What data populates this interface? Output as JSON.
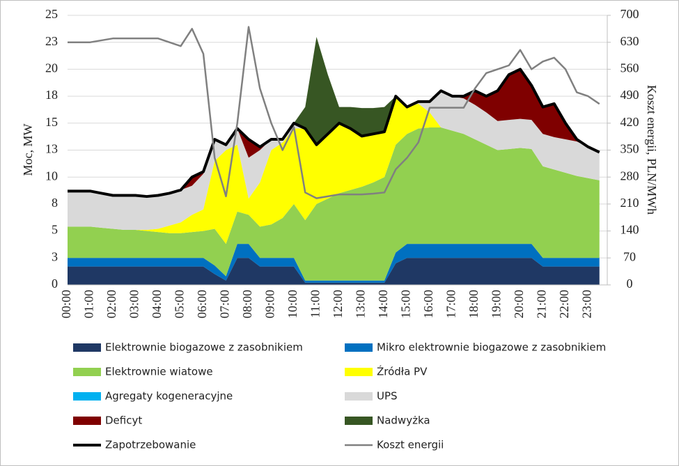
{
  "chart_data": {
    "type": "stacked-area",
    "y_label": "Moc, MW",
    "y2_label": "Koszt energii, PLN/MWh",
    "categories": [
      "00:00",
      null,
      "01:00",
      null,
      "02:00",
      null,
      "03:00",
      null,
      "04:00",
      null,
      "05:00",
      null,
      "06:00",
      null,
      "07:00",
      null,
      "08:00",
      null,
      "09:00",
      null,
      "10:00",
      null,
      "11:00",
      null,
      "12:00",
      null,
      "13:00",
      null,
      "14:00",
      null,
      "15:00",
      null,
      "16:00",
      null,
      "17:00",
      null,
      "18:00",
      null,
      "19:00",
      null,
      "20:00",
      null,
      "21:00",
      null,
      "22:00",
      null,
      "23:00",
      null
    ],
    "ylim": [
      0,
      25
    ],
    "yticks": [
      0,
      {
        "value": 2.5,
        "label": "3"
      },
      5,
      {
        "value": 7.5,
        "label": "8"
      },
      10,
      {
        "value": 12.5,
        "label": "13"
      },
      15,
      {
        "value": 17.5,
        "label": "18"
      },
      20,
      {
        "value": 22.5,
        "label": "23"
      },
      25
    ],
    "y2lim": [
      0,
      700
    ],
    "y2ticks": [
      0,
      70,
      140,
      210,
      280,
      350,
      420,
      490,
      560,
      630,
      700
    ],
    "grid": true,
    "series": [
      {
        "name": "Elektrownie biogazowe z zasobnikiem",
        "type": "area",
        "color": "#1f3864",
        "values": [
          1.7,
          1.7,
          1.7,
          1.7,
          1.7,
          1.7,
          1.7,
          1.7,
          1.7,
          1.7,
          1.7,
          1.7,
          1.7,
          1.0,
          0.4,
          2.5,
          2.5,
          1.7,
          1.7,
          1.7,
          1.7,
          0.2,
          0.2,
          0.2,
          0.2,
          0.2,
          0.2,
          0.2,
          0.2,
          2.0,
          2.5,
          2.5,
          2.5,
          2.5,
          2.5,
          2.5,
          2.5,
          2.5,
          2.5,
          2.5,
          2.5,
          2.5,
          1.7,
          1.7,
          1.7,
          1.7,
          1.7,
          1.7
        ]
      },
      {
        "name": "Mikro elektrownie biogazowe z zasobnikiem",
        "type": "area",
        "color": "#0070c0",
        "values": [
          0.8,
          0.8,
          0.8,
          0.8,
          0.8,
          0.8,
          0.8,
          0.8,
          0.8,
          0.8,
          0.8,
          0.8,
          0.8,
          0.8,
          0.4,
          1.3,
          1.3,
          0.8,
          0.8,
          0.8,
          0.8,
          0.2,
          0.2,
          0.2,
          0.2,
          0.2,
          0.2,
          0.2,
          0.2,
          1.0,
          1.3,
          1.3,
          1.3,
          1.3,
          1.3,
          1.3,
          1.3,
          1.3,
          1.3,
          1.3,
          1.3,
          1.3,
          0.8,
          0.8,
          0.8,
          0.8,
          0.8,
          0.8
        ]
      },
      {
        "name": "Elektrownie wiatowe",
        "type": "area",
        "color": "#92d050",
        "values": [
          2.9,
          2.9,
          2.9,
          2.8,
          2.7,
          2.6,
          2.6,
          2.5,
          2.4,
          2.3,
          2.3,
          2.4,
          2.5,
          3.4,
          3.0,
          3.0,
          2.7,
          2.9,
          3.1,
          3.7,
          5.0,
          5.6,
          7.1,
          7.6,
          8.1,
          8.4,
          8.7,
          9.1,
          9.6,
          10.0,
          10.2,
          10.7,
          10.8,
          10.8,
          10.5,
          10.2,
          9.7,
          9.2,
          8.7,
          8.8,
          8.9,
          8.8,
          8.5,
          8.2,
          7.9,
          7.6,
          7.4,
          7.2
        ]
      },
      {
        "name": "Źródła PV",
        "type": "area",
        "color": "#ffff00",
        "values": [
          0,
          0,
          0,
          0,
          0,
          0,
          0,
          0.1,
          0.3,
          0.7,
          1.0,
          1.6,
          2.0,
          6.3,
          8.7,
          6.2,
          1.5,
          4.1,
          6.9,
          7.0,
          7.0,
          8.5,
          5.5,
          6.0,
          6.5,
          5.7,
          4.7,
          4.5,
          4.2,
          4.5,
          2.5,
          2.3,
          1.4,
          0,
          0,
          0,
          0,
          0,
          0,
          0,
          0,
          0,
          0,
          0,
          0,
          0,
          0,
          0
        ]
      },
      {
        "name": "Agregaty kogeneracyjne",
        "type": "area",
        "color": "#00b0f0",
        "values": [
          0,
          0,
          0,
          0,
          0,
          0,
          0,
          0,
          0,
          0,
          0,
          0,
          0,
          0,
          0,
          0,
          0,
          0,
          0,
          0,
          0,
          0,
          0,
          0,
          0,
          0,
          0,
          0,
          0,
          0,
          0,
          0,
          0,
          0,
          0,
          0,
          0,
          0,
          0,
          0,
          0,
          0,
          0,
          0,
          0,
          0,
          0,
          0
        ]
      },
      {
        "name": "UPS",
        "type": "area",
        "color": "#d9d9d9",
        "values": [
          3.2,
          3.2,
          3.2,
          3.1,
          3.0,
          3.1,
          3.1,
          3.0,
          3.0,
          3.0,
          3.0,
          2.7,
          3.3,
          2.0,
          0.5,
          1.5,
          3.8,
          3.0,
          1.0,
          0.3,
          0.5,
          0,
          0,
          0,
          0,
          0,
          0,
          0,
          0,
          0,
          0,
          0.2,
          1.0,
          3.4,
          3.2,
          3.3,
          3.2,
          3.0,
          2.7,
          2.7,
          2.7,
          2.7,
          3.0,
          3.0,
          3.1,
          3.2,
          2.9,
          2.6
        ]
      },
      {
        "name": "Deficyt",
        "type": "area",
        "color": "#7f0000",
        "values": [
          0,
          0,
          0,
          0,
          0,
          0,
          0,
          0,
          0,
          0,
          0,
          0.8,
          0.2,
          0,
          0,
          0,
          1.7,
          0.3,
          0,
          0,
          0,
          0,
          0,
          0,
          0,
          0,
          0,
          0,
          0,
          0,
          0,
          0,
          0,
          0,
          0,
          0.2,
          1.3,
          1.5,
          2.8,
          4.2,
          4.6,
          3.2,
          2.5,
          3.1,
          1.5,
          0.2,
          0,
          0
        ]
      },
      {
        "name": "Nadwyżka",
        "type": "area",
        "color": "#375623",
        "values": [
          0,
          0,
          0,
          0,
          0,
          0,
          0,
          0,
          0,
          0,
          0,
          0,
          0,
          0,
          0,
          0,
          0,
          0,
          0,
          0,
          0,
          2.0,
          10.0,
          5.5,
          1.5,
          2.0,
          2.6,
          2.4,
          2.3,
          0,
          0,
          0,
          0,
          0,
          0,
          0,
          0,
          0,
          0,
          0,
          0,
          0,
          0,
          0,
          0,
          0,
          0,
          0
        ]
      },
      {
        "name": "Zapotrzebowanie",
        "type": "line",
        "color": "#000000",
        "values": [
          8.7,
          8.7,
          8.7,
          8.5,
          8.3,
          8.3,
          8.3,
          8.2,
          8.3,
          8.5,
          8.8,
          10.0,
          10.5,
          13.5,
          13.0,
          14.5,
          13.5,
          12.8,
          13.5,
          13.5,
          15.0,
          14.5,
          13.0,
          14.0,
          15.0,
          14.5,
          13.8,
          14.0,
          14.2,
          17.5,
          16.5,
          17.0,
          17.0,
          18.0,
          17.5,
          17.5,
          18.0,
          17.5,
          18.0,
          19.5,
          20.0,
          18.5,
          16.5,
          16.8,
          15.0,
          13.5,
          12.8,
          12.3
        ]
      },
      {
        "name": "Koszt energii",
        "type": "line",
        "axis": "y2",
        "color": "#808080",
        "values": [
          630,
          630,
          630,
          635,
          640,
          640,
          640,
          640,
          640,
          630,
          620,
          665,
          600,
          330,
          230,
          420,
          670,
          510,
          420,
          350,
          410,
          240,
          225,
          230,
          235,
          235,
          235,
          237,
          240,
          300,
          330,
          370,
          460,
          460,
          460,
          460,
          510,
          550,
          560,
          570,
          610,
          560,
          580,
          590,
          560,
          500,
          490,
          470
        ]
      }
    ]
  }
}
